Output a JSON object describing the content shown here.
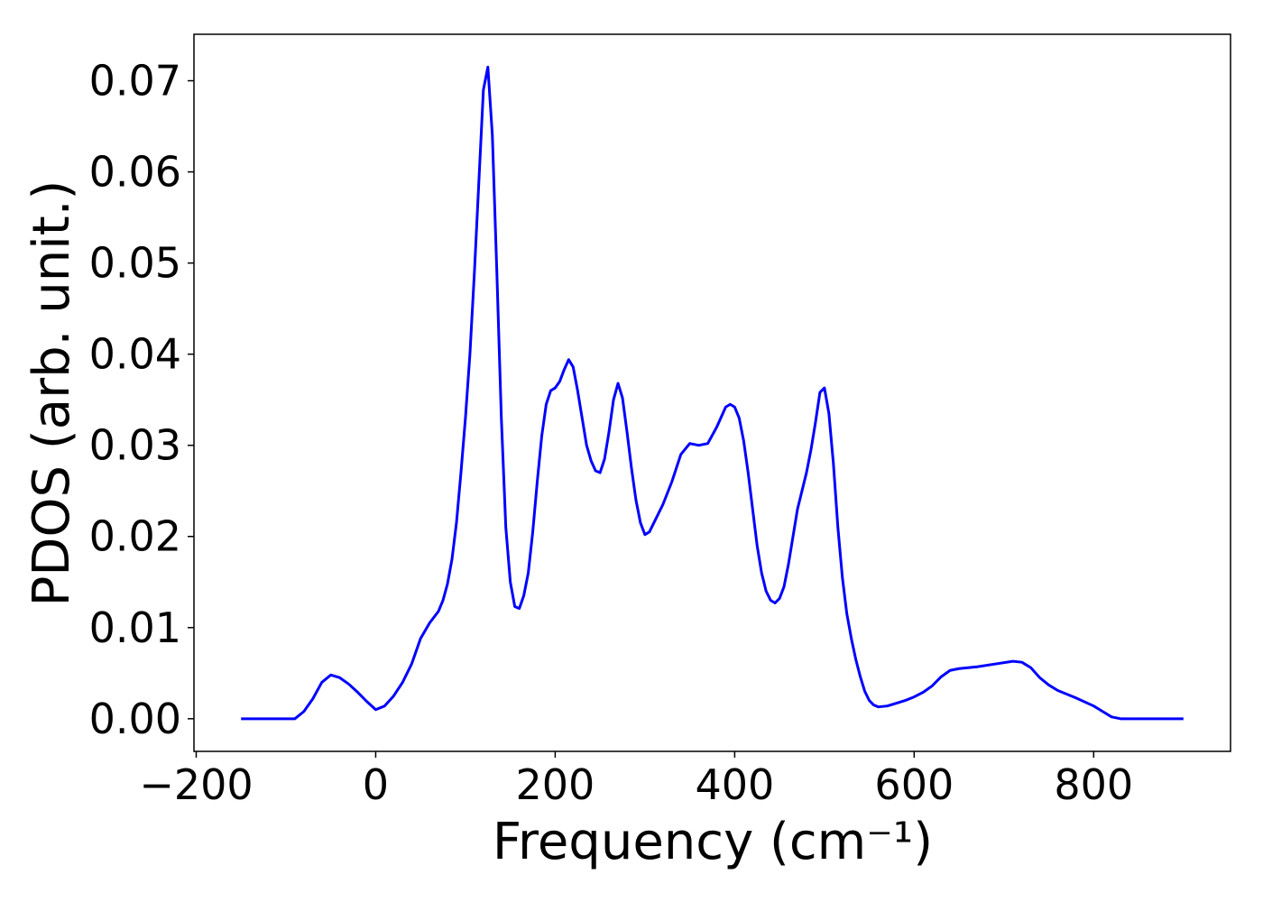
{
  "chart_data": {
    "type": "line",
    "xlabel": "Frequency (cm⁻¹)",
    "ylabel": "PDOS (arb. unit.)",
    "x": [
      -150,
      -100,
      -90,
      -80,
      -70,
      -60,
      -50,
      -40,
      -30,
      -20,
      -10,
      0,
      10,
      20,
      30,
      40,
      50,
      60,
      70,
      75,
      80,
      85,
      90,
      95,
      100,
      105,
      110,
      115,
      120,
      125,
      130,
      135,
      140,
      145,
      150,
      155,
      160,
      165,
      170,
      175,
      180,
      185,
      190,
      195,
      200,
      205,
      210,
      215,
      220,
      225,
      230,
      235,
      240,
      245,
      250,
      255,
      260,
      265,
      270,
      275,
      280,
      285,
      290,
      295,
      300,
      305,
      310,
      320,
      330,
      340,
      350,
      360,
      370,
      380,
      390,
      395,
      400,
      405,
      410,
      415,
      420,
      425,
      430,
      435,
      440,
      445,
      450,
      455,
      460,
      465,
      470,
      475,
      480,
      485,
      490,
      495,
      500,
      505,
      510,
      515,
      520,
      525,
      530,
      535,
      540,
      545,
      550,
      555,
      560,
      570,
      580,
      590,
      600,
      610,
      620,
      630,
      640,
      650,
      670,
      690,
      710,
      720,
      730,
      740,
      750,
      760,
      780,
      800,
      810,
      820,
      830,
      850,
      900
    ],
    "series": [
      {
        "name": "PDOS",
        "color": "#0000ff",
        "values": [
          0,
          0,
          0,
          0.0008,
          0.0022,
          0.004,
          0.0048,
          0.0045,
          0.0038,
          0.0029,
          0.0019,
          0.001,
          0.0014,
          0.0025,
          0.004,
          0.006,
          0.0088,
          0.0105,
          0.0118,
          0.013,
          0.0148,
          0.0175,
          0.0215,
          0.027,
          0.033,
          0.04,
          0.049,
          0.059,
          0.069,
          0.0715,
          0.064,
          0.049,
          0.033,
          0.021,
          0.015,
          0.0123,
          0.0121,
          0.0135,
          0.016,
          0.0205,
          0.026,
          0.031,
          0.0345,
          0.036,
          0.0363,
          0.037,
          0.0383,
          0.0394,
          0.0386,
          0.036,
          0.033,
          0.03,
          0.0283,
          0.0272,
          0.027,
          0.0285,
          0.0315,
          0.035,
          0.0368,
          0.0352,
          0.0315,
          0.0275,
          0.024,
          0.0215,
          0.0202,
          0.0205,
          0.0215,
          0.0235,
          0.026,
          0.029,
          0.0302,
          0.03,
          0.0302,
          0.032,
          0.0342,
          0.0345,
          0.0342,
          0.033,
          0.0305,
          0.027,
          0.023,
          0.019,
          0.016,
          0.014,
          0.013,
          0.0127,
          0.0132,
          0.0145,
          0.017,
          0.02,
          0.023,
          0.025,
          0.027,
          0.0295,
          0.0325,
          0.0358,
          0.0363,
          0.0335,
          0.028,
          0.021,
          0.0155,
          0.0115,
          0.0088,
          0.0065,
          0.0046,
          0.003,
          0.002,
          0.0015,
          0.0013,
          0.0014,
          0.0017,
          0.002,
          0.0024,
          0.0029,
          0.0036,
          0.0046,
          0.0053,
          0.0055,
          0.0057,
          0.006,
          0.0063,
          0.0062,
          0.0056,
          0.0045,
          0.0037,
          0.0031,
          0.0023,
          0.0014,
          0.0008,
          0.0002,
          0,
          0,
          0
        ]
      }
    ],
    "xlim": [
      -202.5,
      952.5
    ],
    "ylim": [
      -0.00358,
      0.0751
    ],
    "xticks": [
      {
        "value": -200,
        "label": "−200"
      },
      0,
      200,
      400,
      600,
      800
    ],
    "yticks": [
      {
        "value": 0,
        "label": "0.00"
      },
      {
        "value": 0.01,
        "label": "0.01"
      },
      {
        "value": 0.02,
        "label": "0.02"
      },
      {
        "value": 0.03,
        "label": "0.03"
      },
      {
        "value": 0.04,
        "label": "0.04"
      },
      {
        "value": 0.05,
        "label": "0.05"
      },
      {
        "value": 0.06,
        "label": "0.06"
      },
      {
        "value": 0.07,
        "label": "0.07"
      }
    ],
    "grid": false
  }
}
